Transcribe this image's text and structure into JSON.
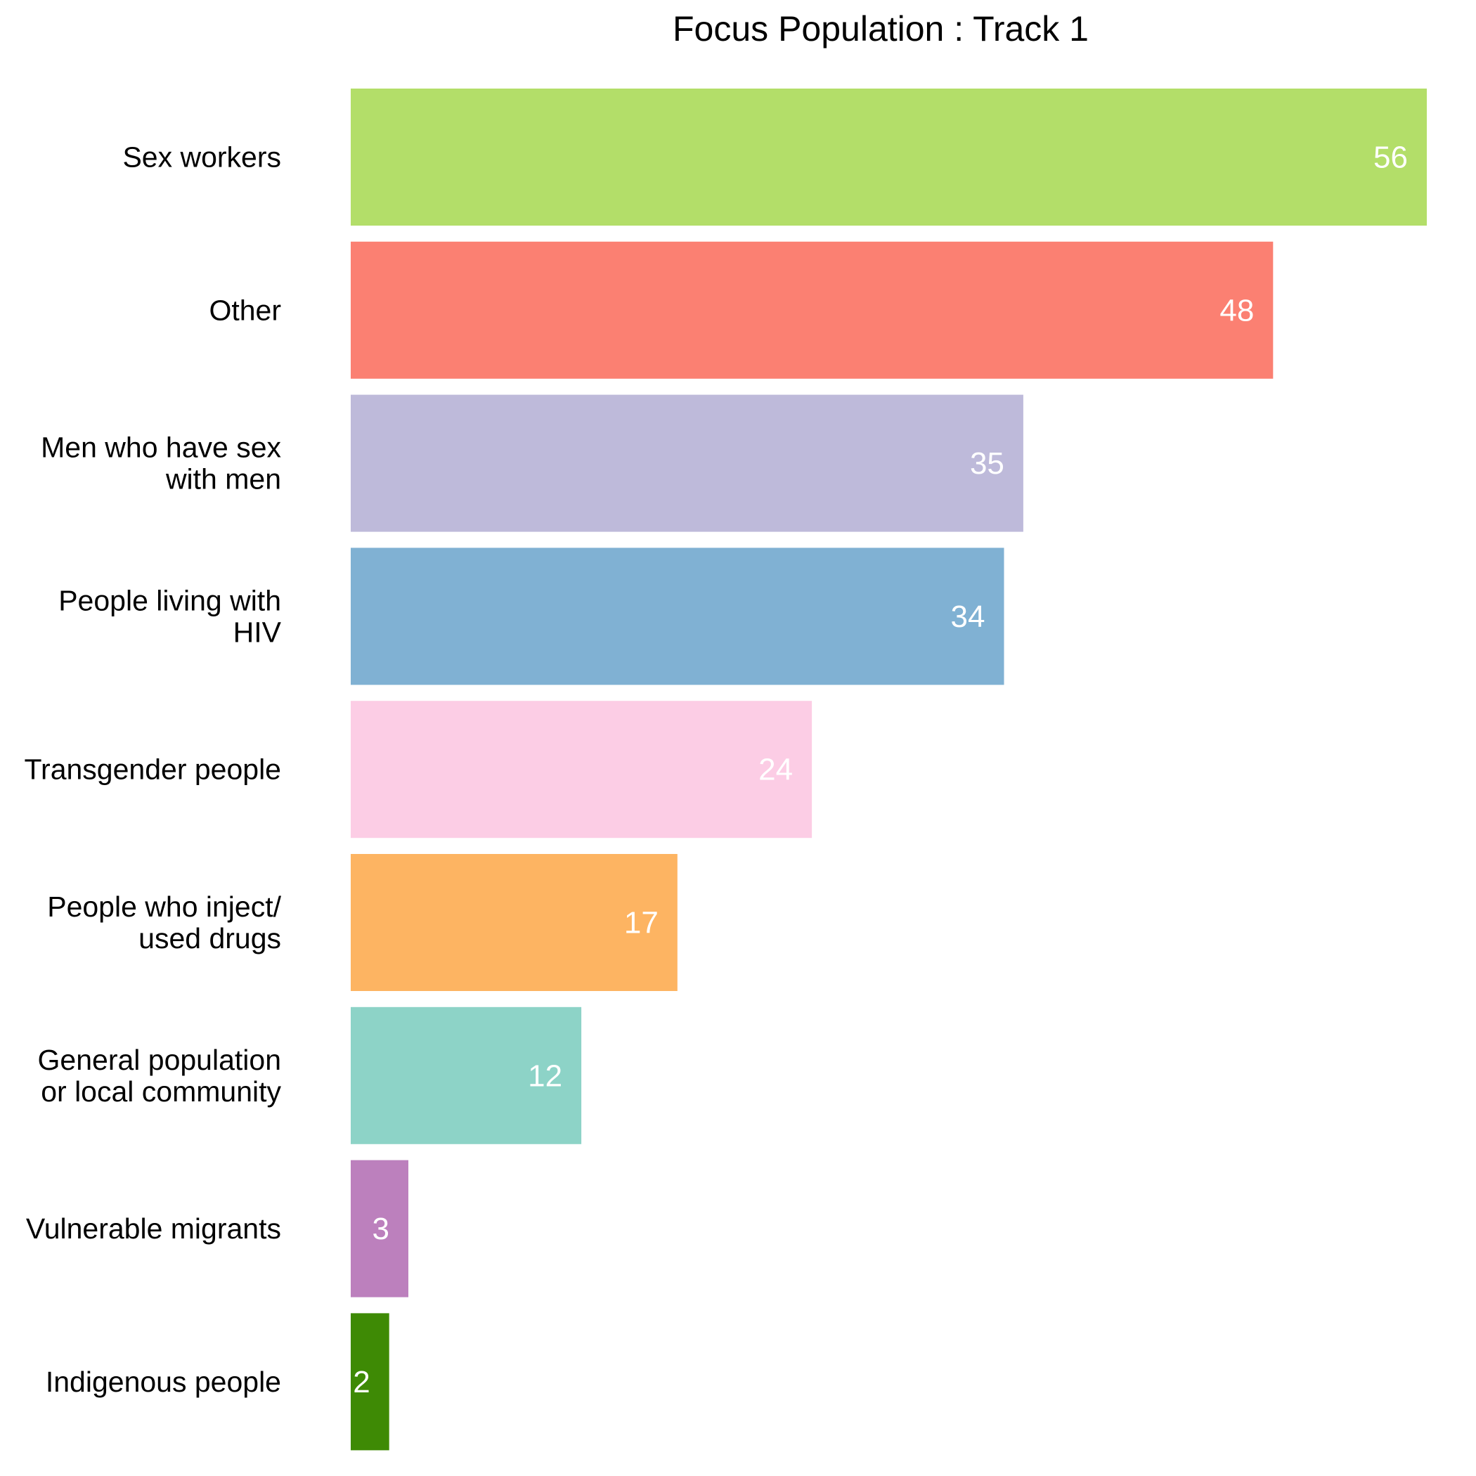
{
  "chart_data": {
    "type": "bar",
    "orientation": "horizontal",
    "title": "Focus Population : Track 1",
    "xlabel": "",
    "ylabel": "",
    "grid": false,
    "legend": "none",
    "xlim": [
      0,
      56
    ],
    "categories": [
      [
        "Sex workers"
      ],
      [
        "Other"
      ],
      [
        "Men who have sex",
        "with men"
      ],
      [
        "People living with",
        "HIV"
      ],
      [
        "Transgender people"
      ],
      [
        "People who inject/",
        "used drugs"
      ],
      [
        "General population",
        "or local community"
      ],
      [
        "Vulnerable migrants"
      ],
      [
        "Indigenous people"
      ]
    ],
    "values": [
      56,
      48,
      35,
      34,
      24,
      17,
      12,
      3,
      2
    ],
    "value_labels": [
      "56",
      "48",
      "35",
      "34",
      "24",
      "17",
      "12",
      "3",
      "2"
    ],
    "colors": [
      "#B3DE69",
      "#FB8072",
      "#BEBADA",
      "#80B1D3",
      "#FCCDE5",
      "#FDB462",
      "#8DD3C7",
      "#BC80BD",
      "#3E8A05"
    ]
  }
}
